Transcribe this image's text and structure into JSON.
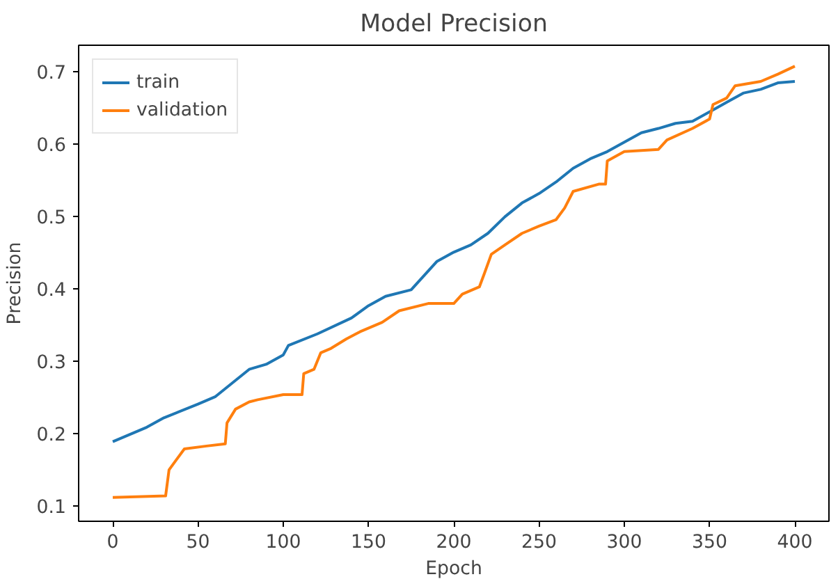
{
  "chart_data": {
    "type": "line",
    "title": "Model Precision",
    "xlabel": "Epoch",
    "ylabel": "Precision",
    "xlim": [
      -20,
      420
    ],
    "ylim": [
      0.079,
      0.737
    ],
    "xticks": [
      0,
      50,
      100,
      150,
      200,
      250,
      300,
      350,
      400
    ],
    "yticks": [
      0.1,
      0.2,
      0.3,
      0.4,
      0.5,
      0.6,
      0.7
    ],
    "grid": false,
    "legend": "top left",
    "series": [
      {
        "name": "train",
        "color": "#1f77b4",
        "x": [
          0,
          20,
          30,
          50,
          60,
          70,
          80,
          90,
          100,
          103,
          120,
          140,
          150,
          160,
          175,
          180,
          190,
          200,
          210,
          220,
          230,
          240,
          250,
          260,
          270,
          280,
          290,
          300,
          310,
          320,
          330,
          340,
          350,
          360,
          370,
          380,
          390,
          400
        ],
        "values": [
          0.189,
          0.209,
          0.222,
          0.241,
          0.251,
          0.27,
          0.289,
          0.296,
          0.309,
          0.322,
          0.338,
          0.36,
          0.377,
          0.39,
          0.399,
          0.412,
          0.438,
          0.451,
          0.461,
          0.477,
          0.5,
          0.519,
          0.532,
          0.548,
          0.567,
          0.58,
          0.59,
          0.603,
          0.616,
          0.622,
          0.629,
          0.632,
          0.645,
          0.658,
          0.671,
          0.676,
          0.685,
          0.687
        ]
      },
      {
        "name": "validation",
        "color": "#ff7f0e",
        "x": [
          0,
          31,
          33,
          37,
          42,
          55,
          66,
          67,
          72,
          80,
          85,
          100,
          111,
          112,
          118,
          122,
          128,
          137,
          145,
          158,
          168,
          185,
          200,
          205,
          215,
          218,
          222,
          230,
          240,
          250,
          260,
          265,
          270,
          285,
          289,
          290,
          300,
          320,
          325,
          340,
          350,
          352,
          360,
          365,
          380,
          390,
          400
        ],
        "values": [
          0.112,
          0.114,
          0.15,
          0.163,
          0.179,
          0.183,
          0.186,
          0.215,
          0.234,
          0.244,
          0.247,
          0.254,
          0.254,
          0.283,
          0.289,
          0.312,
          0.318,
          0.331,
          0.341,
          0.354,
          0.37,
          0.38,
          0.38,
          0.393,
          0.403,
          0.422,
          0.448,
          0.461,
          0.477,
          0.487,
          0.496,
          0.512,
          0.535,
          0.545,
          0.545,
          0.577,
          0.59,
          0.593,
          0.606,
          0.622,
          0.635,
          0.655,
          0.664,
          0.681,
          0.687,
          0.697,
          0.708
        ]
      }
    ]
  }
}
